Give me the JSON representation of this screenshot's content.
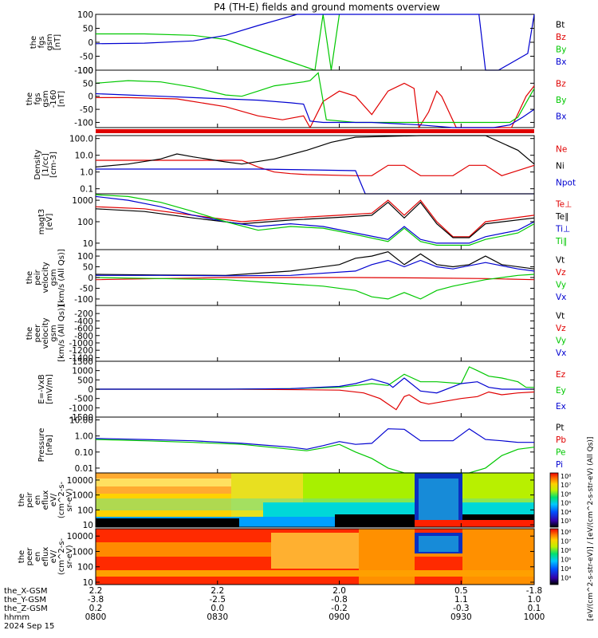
{
  "title": "P4 (TH-E) fields and ground moments overview",
  "colors": {
    "black": "#000000",
    "red": "#e00000",
    "green": "#00c800",
    "blue": "#0000d0"
  },
  "chart_data": [
    {
      "type": "line",
      "panel": "fgs_gsm",
      "ylabel": [
        "the",
        "fgs",
        "gsm",
        "[nT]"
      ],
      "yscale": "linear",
      "ylim": [
        -100,
        100
      ],
      "yticks": [
        "100",
        "50",
        "0",
        "-50",
        "-100"
      ],
      "series": [
        {
          "name": "Bt",
          "color": "black",
          "x": [],
          "y": []
        },
        {
          "name": "Bz",
          "color": "red",
          "x": [],
          "y": []
        },
        {
          "name": "By",
          "color": "green",
          "x": [
            0,
            3,
            6,
            8,
            10,
            12,
            13.5,
            14,
            14.5,
            15
          ],
          "y": [
            30,
            30,
            25,
            10,
            -30,
            -70,
            -100,
            100,
            -100,
            100
          ]
        },
        {
          "name": "Bx",
          "color": "blue",
          "x": [
            0,
            3,
            6,
            8,
            10,
            11.5,
            12.4,
            23.6,
            24,
            24.8,
            26.6,
            27
          ],
          "y": [
            -5,
            -3,
            5,
            25,
            60,
            85,
            100,
            100,
            -100,
            -100,
            -40,
            100
          ]
        }
      ]
    },
    {
      "type": "line",
      "panel": "fgs_gsm_zoom",
      "ylabel": [
        "the",
        "fgs",
        "gsm",
        "-160",
        "[nT]"
      ],
      "yscale": "linear",
      "ylim": [
        -120,
        100
      ],
      "yticks": [
        "100",
        "50",
        "0",
        "-50",
        "-100"
      ],
      "series": [
        {
          "name": "Bz",
          "color": "red",
          "x": [
            0,
            2,
            5,
            8,
            10,
            11.5,
            12.8,
            13.2,
            14,
            15,
            16,
            17,
            18,
            19,
            19.6,
            19.9,
            20.5,
            21,
            21.3,
            22.2,
            23.5,
            24.8,
            25.6,
            26.5,
            27
          ],
          "y": [
            -5,
            -5,
            -10,
            -40,
            -75,
            -90,
            -75,
            -120,
            -20,
            20,
            0,
            -70,
            20,
            50,
            30,
            -120,
            -60,
            20,
            0,
            -120,
            -120,
            -120,
            -120,
            0,
            40
          ]
        },
        {
          "name": "By",
          "color": "green",
          "x": [
            0,
            2,
            4,
            6,
            8,
            9,
            10,
            11,
            12.8,
            13.2,
            13.7,
            14.2,
            16,
            20,
            22,
            24,
            25.5,
            26,
            27
          ],
          "y": [
            50,
            60,
            55,
            35,
            5,
            0,
            20,
            40,
            55,
            60,
            90,
            -90,
            -100,
            -100,
            -100,
            -100,
            -100,
            -80,
            30
          ]
        },
        {
          "name": "Bx",
          "color": "blue",
          "x": [
            0,
            2,
            4,
            6,
            8,
            10,
            12,
            12.8,
            13.2,
            14,
            17,
            20,
            22,
            24.5,
            25.5,
            26.3,
            27
          ],
          "y": [
            10,
            5,
            0,
            -5,
            -10,
            -15,
            -25,
            -30,
            -95,
            -100,
            -100,
            -110,
            -120,
            -120,
            -110,
            -80,
            -50
          ]
        }
      ]
    },
    {
      "type": "line",
      "panel": "density",
      "ylabel": [
        "Density",
        "[1/cc]",
        "[cm-3]"
      ],
      "yscale": "log",
      "ylim": [
        0.05,
        150
      ],
      "yticks": [
        "100.0",
        "10.0",
        "1.0",
        "0.1"
      ],
      "series": [
        {
          "name": "Ne",
          "color": "red",
          "x": [
            0,
            6,
            9,
            10,
            11,
            12,
            13,
            16,
            17,
            18,
            19,
            20,
            22,
            23,
            24,
            25,
            27
          ],
          "y": [
            5,
            5,
            5,
            2,
            1,
            0.8,
            0.7,
            0.6,
            0.6,
            2.5,
            2.5,
            0.6,
            0.6,
            2.5,
            2.5,
            0.6,
            2.5
          ]
        },
        {
          "name": "Ni",
          "color": "black",
          "x": [
            0,
            2,
            4,
            5,
            6,
            8,
            9,
            11,
            13,
            14.5,
            16,
            20,
            24,
            26,
            27
          ],
          "y": [
            2,
            3,
            6,
            12,
            8,
            4,
            3,
            6,
            20,
            60,
            120,
            150,
            150,
            20,
            3
          ]
        },
        {
          "name": "Npot",
          "color": "blue",
          "x": [
            0,
            10,
            12,
            16,
            16.6,
            27
          ],
          "y": [
            1.5,
            1.5,
            1.4,
            1.2,
            0.05,
            0.05
          ]
        }
      ]
    },
    {
      "type": "line",
      "panel": "temperature",
      "ylabel": [
        "magt3",
        "[eV]"
      ],
      "yscale": "log",
      "ylim": [
        5,
        2000
      ],
      "yticks": [
        "1000",
        "100",
        "10"
      ],
      "series": [
        {
          "name": "Te⊥",
          "color": "red",
          "x": [
            0,
            3,
            6,
            9,
            12,
            15,
            17,
            18,
            19,
            20,
            21,
            22,
            23,
            24,
            27
          ],
          "y": [
            500,
            400,
            200,
            100,
            150,
            200,
            250,
            1000,
            200,
            1000,
            100,
            20,
            20,
            100,
            200
          ]
        },
        {
          "name": "Te∥",
          "color": "black",
          "x": [
            0,
            3,
            6,
            9,
            12,
            15,
            17,
            18,
            19,
            20,
            21,
            22,
            23,
            24,
            27
          ],
          "y": [
            400,
            300,
            150,
            80,
            120,
            160,
            200,
            800,
            150,
            800,
            80,
            18,
            18,
            80,
            150
          ]
        },
        {
          "name": "Ti⊥",
          "color": "blue",
          "x": [
            0,
            2,
            4,
            6,
            8,
            10,
            12,
            14,
            16,
            18,
            19,
            20,
            21,
            22,
            23,
            24,
            26,
            27
          ],
          "y": [
            1500,
            1000,
            500,
            200,
            100,
            60,
            80,
            60,
            30,
            15,
            60,
            15,
            10,
            10,
            10,
            20,
            40,
            100
          ]
        },
        {
          "name": "Ti∥",
          "color": "green",
          "x": [
            0,
            2,
            4,
            6,
            8,
            10,
            12,
            14,
            16,
            18,
            19,
            20,
            21,
            22,
            23,
            24,
            26,
            27
          ],
          "y": [
            1800,
            1500,
            800,
            300,
            100,
            40,
            60,
            50,
            25,
            12,
            50,
            12,
            8,
            8,
            8,
            15,
            30,
            80
          ]
        }
      ]
    },
    {
      "type": "line",
      "panel": "velocity_all",
      "ylabel": [
        "the",
        "peir",
        "velocity",
        "gsm",
        "[km/s (All Qs)]"
      ],
      "yscale": "linear",
      "ylim": [
        -130,
        130
      ],
      "yticks": [
        "100",
        "50",
        "0",
        "-50",
        "-100"
      ],
      "series": [
        {
          "name": "Vt",
          "color": "black",
          "x": [
            0,
            4,
            8,
            10,
            12,
            15,
            16,
            17,
            18,
            19,
            20,
            21,
            22,
            23,
            24,
            25,
            27
          ],
          "y": [
            15,
            12,
            10,
            20,
            30,
            60,
            90,
            100,
            120,
            60,
            110,
            60,
            50,
            60,
            100,
            60,
            40
          ]
        },
        {
          "name": "Vz",
          "color": "red",
          "x": [
            0,
            4,
            8,
            12,
            16,
            20,
            24,
            27
          ],
          "y": [
            -10,
            -5,
            0,
            0,
            0,
            -2,
            -5,
            -10
          ]
        },
        {
          "name": "Vy",
          "color": "green",
          "x": [
            0,
            4,
            8,
            10,
            12,
            14,
            16,
            17,
            18,
            19,
            20,
            21,
            22,
            24,
            26,
            27
          ],
          "y": [
            0,
            -5,
            -10,
            -20,
            -30,
            -40,
            -60,
            -90,
            -100,
            -70,
            -100,
            -60,
            -40,
            -10,
            10,
            15
          ]
        },
        {
          "name": "Vx",
          "color": "blue",
          "x": [
            0,
            4,
            8,
            12,
            16,
            17,
            18,
            19,
            20,
            21,
            22,
            24,
            26,
            27
          ],
          "y": [
            10,
            10,
            8,
            10,
            30,
            60,
            80,
            50,
            80,
            50,
            40,
            70,
            40,
            30
          ]
        }
      ]
    },
    {
      "type": "line",
      "panel": "velocity_peer",
      "ylabel": [
        "the",
        "peer",
        "velocity",
        "gsm",
        "[km/s (All Qs)]"
      ],
      "yscale": "linear",
      "ylim": [
        -1500,
        20
      ],
      "yticks": [
        "-200",
        "-400",
        "-600",
        "-800",
        "-1000",
        "-1200",
        "-1400"
      ],
      "series": [
        {
          "name": "Vt",
          "color": "black",
          "x": [],
          "y": []
        },
        {
          "name": "Vz",
          "color": "red",
          "x": [],
          "y": []
        },
        {
          "name": "Vy",
          "color": "green",
          "x": [],
          "y": []
        },
        {
          "name": "Vx",
          "color": "blue",
          "x": [],
          "y": []
        }
      ]
    },
    {
      "type": "line",
      "panel": "efield",
      "ylabel": [
        "E=-VxB",
        "[mV/m]"
      ],
      "yscale": "linear",
      "ylim": [
        -1500,
        1500
      ],
      "yticks": [
        "1500",
        "1000",
        "500",
        "0",
        "-500",
        "-1000",
        "-1500"
      ],
      "series": [
        {
          "name": "Ez",
          "color": "red",
          "x": [
            0,
            8,
            12,
            15,
            16.5,
            17.5,
            18.5,
            19,
            19.3,
            20,
            20.5,
            22.5,
            23.5,
            24.2,
            25,
            26,
            27
          ],
          "y": [
            0,
            0,
            -20,
            -50,
            -200,
            -500,
            -1100,
            -400,
            -300,
            -700,
            -800,
            -500,
            -400,
            -150,
            -300,
            -200,
            -150
          ]
        },
        {
          "name": "Ey",
          "color": "green",
          "x": [
            0,
            8,
            12,
            15,
            17,
            18,
            19,
            20,
            21,
            22.5,
            23,
            23.5,
            24.2,
            25,
            26,
            26.5,
            27
          ],
          "y": [
            0,
            0,
            30,
            100,
            300,
            200,
            800,
            400,
            400,
            300,
            1200,
            1000,
            700,
            600,
            400,
            100,
            100
          ]
        },
        {
          "name": "Ex",
          "color": "blue",
          "x": [
            0,
            8,
            12,
            15,
            16,
            17,
            18,
            18.3,
            19,
            20,
            21,
            22.5,
            23.5,
            24.2,
            25,
            27
          ],
          "y": [
            0,
            0,
            30,
            150,
            300,
            550,
            300,
            100,
            600,
            -100,
            -200,
            300,
            400,
            100,
            0,
            0
          ]
        }
      ]
    },
    {
      "type": "line",
      "panel": "pressure",
      "ylabel": [
        "Pressure",
        "[nPa]"
      ],
      "yscale": "log",
      "ylim": [
        0.005,
        15
      ],
      "yticks": [
        "10.00",
        "1.00",
        "0.10",
        "0.01"
      ],
      "series": [
        {
          "name": "Pt",
          "color": "black",
          "x": [],
          "y": []
        },
        {
          "name": "Pb",
          "color": "red",
          "x": [],
          "y": []
        },
        {
          "name": "Pe",
          "color": "green",
          "x": [
            0,
            3,
            6,
            9,
            12,
            13,
            14,
            15,
            16,
            17,
            18,
            19,
            20,
            21,
            22,
            23,
            24,
            25,
            26,
            27
          ],
          "y": [
            0.6,
            0.5,
            0.4,
            0.3,
            0.15,
            0.12,
            0.18,
            0.3,
            0.1,
            0.04,
            0.01,
            0.005,
            0.005,
            0.005,
            0.005,
            0.005,
            0.01,
            0.06,
            0.15,
            0.2
          ]
        },
        {
          "name": "Pi",
          "color": "blue",
          "x": [
            0,
            3,
            6,
            9,
            12,
            13,
            14,
            15,
            16,
            17,
            18,
            19,
            20,
            21,
            22,
            23,
            24,
            25,
            26,
            27
          ],
          "y": [
            0.7,
            0.6,
            0.5,
            0.35,
            0.2,
            0.15,
            0.25,
            0.45,
            0.3,
            0.35,
            2.8,
            2.6,
            0.5,
            0.5,
            0.5,
            2.8,
            0.6,
            0.5,
            0.4,
            0.4
          ]
        }
      ]
    },
    {
      "type": "heatmap",
      "panel": "peir_eflux",
      "ylabel": [
        "the",
        "peir",
        "en",
        "eflux",
        "eV/",
        "(cm^2-s-",
        "sr-eV)"
      ],
      "yscale": "log",
      "ylim": [
        7,
        30000
      ],
      "yticks": [
        "10000",
        "1000",
        "100",
        "10"
      ]
    },
    {
      "type": "heatmap",
      "panel": "peer_eflux",
      "ylabel": [
        "the",
        "peer",
        "en",
        "eflux",
        "eV/",
        "(cm^2-s-",
        "sr-eV)"
      ],
      "yscale": "log",
      "ylim": [
        7,
        30000
      ],
      "yticks": [
        "10000",
        "1000",
        "100",
        "10"
      ]
    }
  ],
  "colorbar": {
    "label": "[eV/(cm^2-s-str-eV)] / [eV/(cm^2-s-str-eV) (All Qs)]",
    "ticks_top": [
      "10⁸",
      "10⁷",
      "10⁶",
      "10⁵",
      "10⁴",
      "10³"
    ],
    "ticks_bottom": [
      "10⁸",
      "10⁷",
      "10⁶",
      "10⁵",
      "10⁴",
      "10³"
    ]
  },
  "xaxis": {
    "ticks": [
      {
        "x_label": "2.2",
        "y_label": "-3.8",
        "z_label": "0.2",
        "time": "0800"
      },
      {
        "x_label": "2.2",
        "y_label": "-2.5",
        "z_label": "0.0",
        "time": "0830"
      },
      {
        "x_label": "2.0",
        "y_label": "-0.8",
        "z_label": "-0.2",
        "time": "0900"
      },
      {
        "x_label": "0.5",
        "y_label": "1.1",
        "z_label": "-0.3",
        "time": "0930"
      },
      {
        "x_label": "-1.8",
        "y_label": "1.0",
        "z_label": "0.1",
        "time": "1000"
      }
    ],
    "row_labels": [
      "the_X-GSM",
      "the_Y-GSM",
      "the_Z-GSM",
      "hhmm",
      "2024 Sep 15"
    ]
  }
}
